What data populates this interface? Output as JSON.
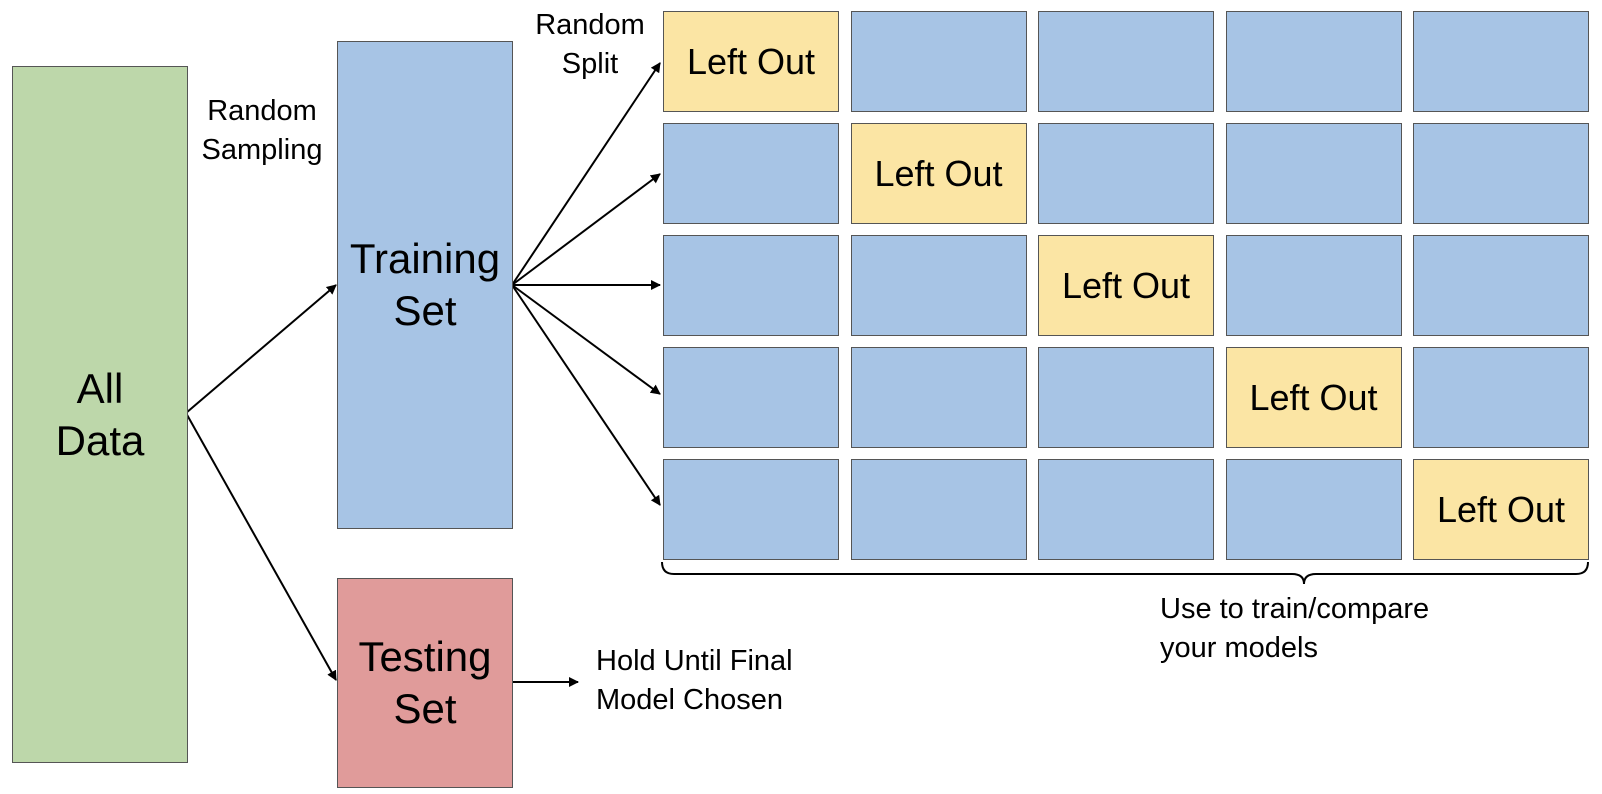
{
  "colors": {
    "green": "#bdd7aa",
    "blue": "#a7c4e5",
    "red": "#e09b9a",
    "yellow": "#fbe5a4",
    "line": "#000000"
  },
  "boxes": {
    "all_data": "All\nData",
    "training_set": "Training\nSet",
    "testing_set": "Testing\nSet"
  },
  "labels": {
    "random_sampling": "Random\nSampling",
    "random_split": "Random\nSplit",
    "hold_until": "Hold Until Final\nModel Chosen",
    "use_to_train": "Use to train/compare\nyour models"
  },
  "grid": {
    "rows": 5,
    "cols": 5,
    "left_out_label": "Left Out",
    "left_out_cells": [
      [
        0,
        0
      ],
      [
        1,
        1
      ],
      [
        2,
        2
      ],
      [
        3,
        3
      ],
      [
        4,
        4
      ]
    ]
  }
}
